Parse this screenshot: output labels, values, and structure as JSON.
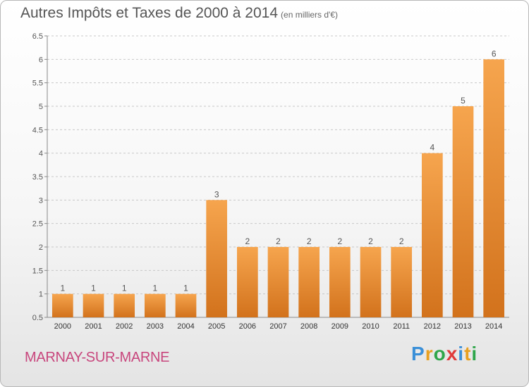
{
  "header": {
    "title": "Autres Impôts et Taxes de 2000 à 2014",
    "unit": "(en milliers d'€)"
  },
  "footer": {
    "commune": "MARNAY-SUR-MARNE",
    "logo": "Proxiti"
  },
  "colors": {
    "bar_light": "#f6a54e",
    "bar_dark": "#d2721c",
    "commune": "#c8467d"
  },
  "chart_data": {
    "type": "bar",
    "title": "Autres Impôts et Taxes de 2000 à 2014",
    "subtitle": "(en milliers d'€)",
    "xlabel": "",
    "ylabel": "",
    "categories": [
      "2000",
      "2001",
      "2002",
      "2003",
      "2004",
      "2005",
      "2006",
      "2007",
      "2008",
      "2009",
      "2010",
      "2011",
      "2012",
      "2013",
      "2014"
    ],
    "values": [
      1,
      1,
      1,
      1,
      1,
      3,
      2,
      2,
      2,
      2,
      2,
      2,
      4,
      5,
      6
    ],
    "data_labels": [
      "1",
      "1",
      "1",
      "1",
      "1",
      "3",
      "2",
      "2",
      "2",
      "2",
      "2",
      "2",
      "4",
      "5",
      "6"
    ],
    "ylim": [
      0.5,
      6.5
    ],
    "yticks": [
      "0.5",
      "1",
      "1.5",
      "2",
      "2.5",
      "3",
      "3.5",
      "4",
      "4.5",
      "5",
      "5.5",
      "6",
      "6.5"
    ],
    "grid": "horizontal dashed",
    "legend": "none"
  }
}
